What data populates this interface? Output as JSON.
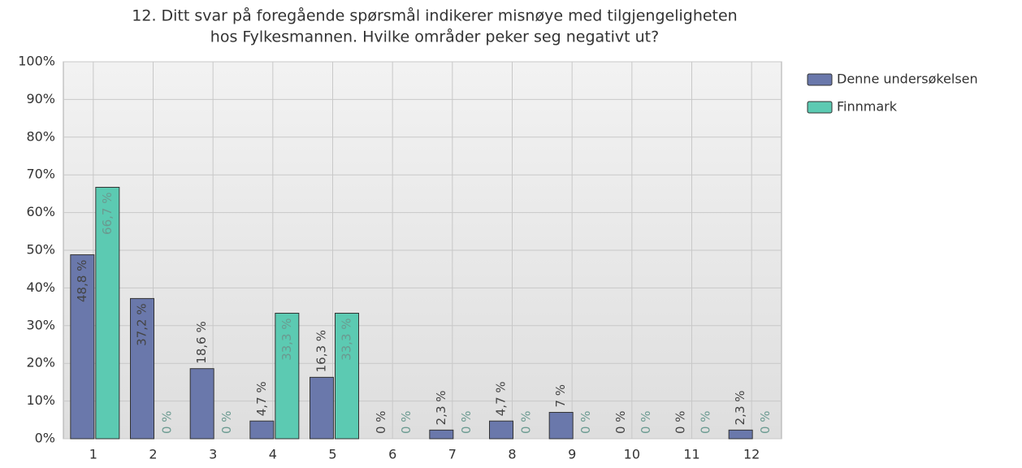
{
  "chart_data": {
    "type": "bar",
    "title": [
      "12. Ditt svar på foregående spørsmål indikerer misnøye med tilgjengeligheten",
      "hos Fylkesmannen. Hvilke områder peker seg negativt ut?"
    ],
    "categories": [
      "1",
      "2",
      "3",
      "4",
      "5",
      "6",
      "7",
      "8",
      "9",
      "10",
      "11",
      "12"
    ],
    "series": [
      {
        "name": "Denne undersøkelsen",
        "color": "#6a78ab",
        "values": [
          48.8,
          37.2,
          18.6,
          4.7,
          16.3,
          0,
          2.3,
          4.7,
          7,
          0,
          0,
          2.3
        ],
        "value_labels": [
          "48,8 %",
          "37,2 %",
          "18,6 %",
          "4,7 %",
          "16,3 %",
          "0 %",
          "2,3 %",
          "4,7 %",
          "7 %",
          "0 %",
          "0 %",
          "2,3 %"
        ]
      },
      {
        "name": "Finnmark",
        "color": "#5ccab2",
        "values": [
          66.7,
          0,
          0,
          33.3,
          33.3,
          0,
          0,
          0,
          0,
          0,
          0,
          0
        ],
        "value_labels": [
          "66,7 %",
          "0 %",
          "0 %",
          "33,3 %",
          "33,3 %",
          "0 %",
          "0 %",
          "0 %",
          "0 %",
          "0 %",
          "0 %",
          "0 %"
        ]
      }
    ],
    "ylim": [
      0,
      100
    ],
    "yticks": [
      {
        "value": 0,
        "label": "0%"
      },
      {
        "value": 10,
        "label": "10%"
      },
      {
        "value": 20,
        "label": "20%"
      },
      {
        "value": 30,
        "label": "30%"
      },
      {
        "value": 40,
        "label": "40%"
      },
      {
        "value": 50,
        "label": "50%"
      },
      {
        "value": 60,
        "label": "60%"
      },
      {
        "value": 70,
        "label": "70%"
      },
      {
        "value": 80,
        "label": "80%"
      },
      {
        "value": 90,
        "label": "90%"
      },
      {
        "value": 100,
        "label": "100%"
      }
    ],
    "grid": true,
    "legend": "right"
  }
}
